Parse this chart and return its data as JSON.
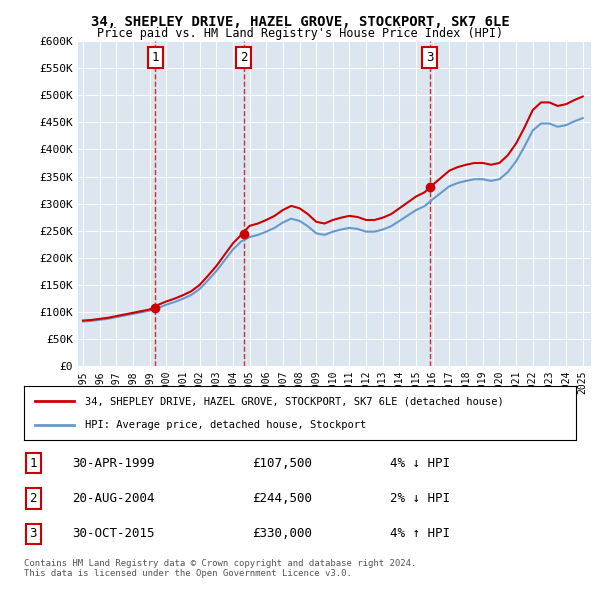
{
  "title": "34, SHEPLEY DRIVE, HAZEL GROVE, STOCKPORT, SK7 6LE",
  "subtitle": "Price paid vs. HM Land Registry's House Price Index (HPI)",
  "legend_line1": "34, SHEPLEY DRIVE, HAZEL GROVE, STOCKPORT, SK7 6LE (detached house)",
  "legend_line2": "HPI: Average price, detached house, Stockport",
  "sale1_date": "30-APR-1999",
  "sale1_price": 107500,
  "sale1_hpi": "4% ↓ HPI",
  "sale2_date": "20-AUG-2004",
  "sale2_price": 244500,
  "sale2_hpi": "2% ↓ HPI",
  "sale3_date": "30-OCT-2015",
  "sale3_price": 330000,
  "sale3_hpi": "4% ↑ HPI",
  "copyright": "Contains HM Land Registry data © Crown copyright and database right 2024.\nThis data is licensed under the Open Government Licence v3.0.",
  "sale_color": "#cc0000",
  "hpi_color": "#6699cc",
  "background_color": "#dce6f1",
  "ylim_min": 0,
  "ylim_max": 600000,
  "sale_line_color": "#cc0000",
  "vline_color": "#cc0000",
  "vline_style": "--"
}
